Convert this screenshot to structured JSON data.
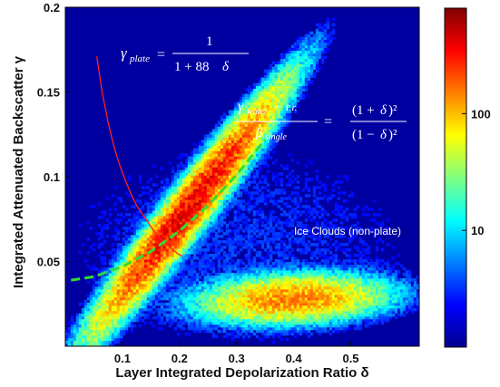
{
  "chart_data": {
    "type": "heatmap",
    "xlabel": "Layer Integrated Depolarization Ratio δ",
    "ylabel": "Integrated Attenuated Backscatter γ",
    "xlim": [
      0.0,
      0.62
    ],
    "ylim": [
      0.0,
      0.2
    ],
    "x_ticks": [
      "0.1",
      "0.2",
      "0.3",
      "0.4",
      "0.5"
    ],
    "x_tick_values": [
      0.1,
      0.2,
      0.3,
      0.4,
      0.5
    ],
    "y_ticks": [
      "0.05",
      "0.1",
      "0.15",
      "0.2"
    ],
    "y_tick_values": [
      0.05,
      0.1,
      0.15,
      0.2
    ],
    "colorbar": {
      "scale": "log",
      "range": [
        1,
        800
      ],
      "ticks": [
        "10",
        "100"
      ],
      "tick_values": [
        10,
        100
      ]
    },
    "density_clusters": [
      {
        "x_range": [
          0.12,
          0.3
        ],
        "y_range": [
          0.045,
          0.115
        ],
        "peak_count": 400
      },
      {
        "x_range": [
          0.25,
          0.52
        ],
        "y_range": [
          0.018,
          0.045
        ],
        "peak_count": 150
      }
    ],
    "curves": [
      {
        "formula": "1/(1+88δ)",
        "color": "#ff2020",
        "x": [
          0.055,
          0.065,
          0.075,
          0.085,
          0.095,
          0.105,
          0.115,
          0.125,
          0.135,
          0.145,
          0.155,
          0.165,
          0.175,
          0.185,
          0.195,
          0.205
        ],
        "y": [
          0.171,
          0.149,
          0.132,
          0.118,
          0.107,
          0.098,
          0.09,
          0.083,
          0.078,
          0.073,
          0.068,
          0.064,
          0.061,
          0.058,
          0.055,
          0.053
        ]
      },
      {
        "formula": "(1+δ)²/(1−δ)²",
        "color": "#33dd33",
        "x": [
          0.01,
          0.05,
          0.1,
          0.15,
          0.2,
          0.25,
          0.3,
          0.35
        ],
        "y": [
          0.039,
          0.041,
          0.047,
          0.056,
          0.068,
          0.083,
          0.101,
          0.122
        ]
      }
    ],
    "annotations": [
      {
        "text": "Ice Clouds (non-plate)",
        "x": 0.45,
        "y": 0.068
      }
    ]
  }
}
